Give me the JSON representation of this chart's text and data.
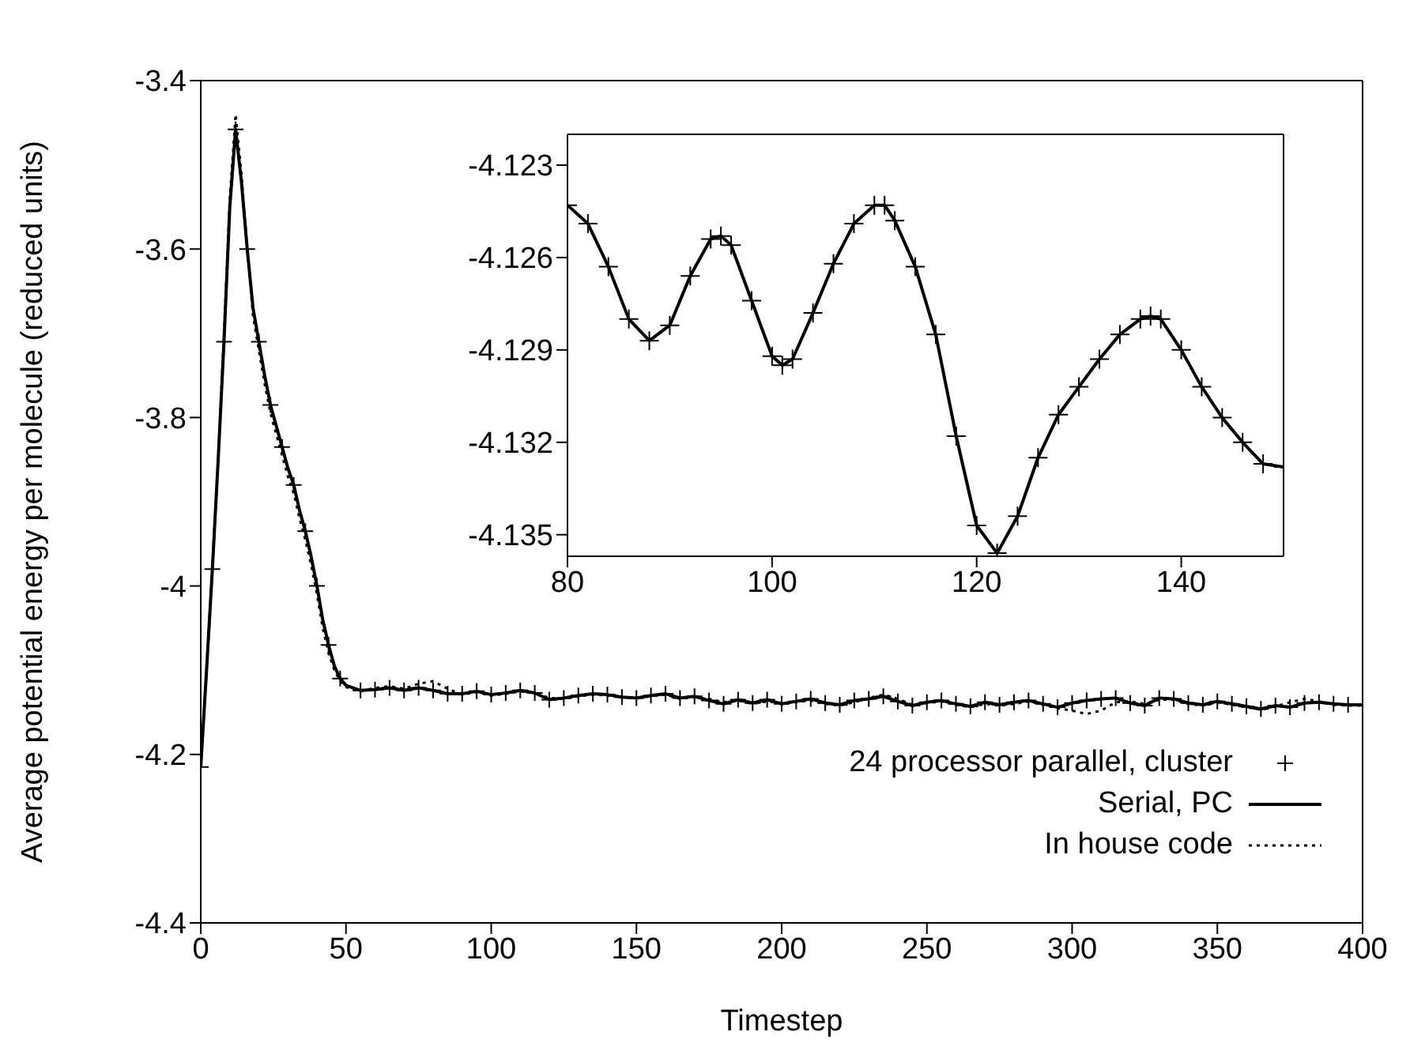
{
  "chart_data": [
    {
      "type": "line",
      "xlabel": "Timestep",
      "ylabel": "Average potential energy per molecule (reduced units)",
      "xlim": [
        0,
        400
      ],
      "xticks": [
        0,
        50,
        100,
        150,
        200,
        250,
        300,
        350,
        400
      ],
      "ylim": [
        -4.4,
        -3.4
      ],
      "yticks": [
        -4.4,
        -4.2,
        -4,
        -3.8,
        -3.6,
        -3.4
      ],
      "legend": "bottom right",
      "x": [
        0,
        2,
        4,
        6,
        8,
        10,
        12,
        14,
        16,
        18,
        20,
        22,
        24,
        26,
        28,
        30,
        32,
        34,
        36,
        38,
        40,
        42,
        44,
        46,
        48,
        50,
        55,
        60,
        65,
        70,
        75,
        80,
        85,
        90,
        95,
        100,
        105,
        110,
        115,
        120,
        125,
        130,
        135,
        140,
        145,
        150,
        155,
        160,
        165,
        170,
        175,
        180,
        185,
        190,
        195,
        200,
        205,
        210,
        215,
        220,
        225,
        230,
        235,
        240,
        245,
        250,
        255,
        260,
        265,
        270,
        275,
        280,
        285,
        290,
        295,
        300,
        305,
        310,
        315,
        320,
        325,
        330,
        335,
        340,
        345,
        350,
        355,
        360,
        365,
        370,
        375,
        380,
        385,
        390,
        395,
        400
      ],
      "series": [
        {
          "name": "24 processor parallel, cluster",
          "type": "scatter",
          "marker": "cross",
          "color": "#000000",
          "x": [
            0,
            4,
            8,
            12,
            16,
            20,
            24,
            28,
            32,
            36,
            40,
            44,
            48,
            55,
            60,
            65,
            70,
            75,
            80,
            85,
            90,
            95,
            100,
            105,
            110,
            115,
            120,
            125,
            130,
            135,
            140,
            145,
            150,
            155,
            160,
            165,
            170,
            175,
            180,
            185,
            190,
            195,
            200,
            205,
            210,
            215,
            220,
            225,
            230,
            235,
            240,
            245,
            250,
            255,
            260,
            265,
            270,
            275,
            280,
            285,
            290,
            295,
            300,
            305,
            310,
            315,
            320,
            325,
            330,
            335,
            340,
            345,
            350,
            355,
            360,
            365,
            370,
            375,
            380,
            385,
            390,
            395
          ],
          "values": [
            -4.215,
            -3.98,
            -3.71,
            -3.458,
            -3.6,
            -3.71,
            -3.785,
            -3.835,
            -3.88,
            -3.935,
            -4.0,
            -4.07,
            -4.11,
            -4.124,
            -4.123,
            -4.121,
            -4.124,
            -4.121,
            -4.124,
            -4.128,
            -4.128,
            -4.125,
            -4.129,
            -4.127,
            -4.124,
            -4.127,
            -4.135,
            -4.133,
            -4.13,
            -4.128,
            -4.129,
            -4.132,
            -4.133,
            -4.13,
            -4.128,
            -4.133,
            -4.131,
            -4.136,
            -4.14,
            -4.135,
            -4.139,
            -4.135,
            -4.14,
            -4.137,
            -4.134,
            -4.139,
            -4.141,
            -4.136,
            -4.134,
            -4.131,
            -4.137,
            -4.142,
            -4.138,
            -4.136,
            -4.14,
            -4.143,
            -4.138,
            -4.141,
            -4.138,
            -4.136,
            -4.14,
            -4.144,
            -4.139,
            -4.136,
            -4.134,
            -4.133,
            -4.139,
            -4.142,
            -4.133,
            -4.134,
            -4.139,
            -4.141,
            -4.137,
            -4.14,
            -4.143,
            -4.146,
            -4.142,
            -4.144,
            -4.139,
            -4.138,
            -4.14,
            -4.141
          ]
        },
        {
          "name": "Serial, PC",
          "type": "line",
          "line_style": "solid",
          "color": "#000000",
          "values": [
            -4.215,
            -4.1,
            -3.98,
            -3.85,
            -3.71,
            -3.55,
            -3.458,
            -3.52,
            -3.6,
            -3.67,
            -3.71,
            -3.75,
            -3.785,
            -3.81,
            -3.835,
            -3.86,
            -3.88,
            -3.91,
            -3.935,
            -3.965,
            -4.0,
            -4.04,
            -4.07,
            -4.095,
            -4.11,
            -4.118,
            -4.124,
            -4.123,
            -4.121,
            -4.124,
            -4.121,
            -4.124,
            -4.128,
            -4.128,
            -4.125,
            -4.129,
            -4.127,
            -4.124,
            -4.127,
            -4.135,
            -4.133,
            -4.13,
            -4.128,
            -4.129,
            -4.132,
            -4.133,
            -4.13,
            -4.128,
            -4.133,
            -4.131,
            -4.136,
            -4.14,
            -4.135,
            -4.139,
            -4.135,
            -4.14,
            -4.137,
            -4.134,
            -4.139,
            -4.141,
            -4.136,
            -4.134,
            -4.131,
            -4.137,
            -4.142,
            -4.138,
            -4.136,
            -4.14,
            -4.143,
            -4.138,
            -4.141,
            -4.138,
            -4.136,
            -4.14,
            -4.144,
            -4.139,
            -4.136,
            -4.134,
            -4.133,
            -4.139,
            -4.142,
            -4.133,
            -4.134,
            -4.139,
            -4.141,
            -4.137,
            -4.14,
            -4.143,
            -4.146,
            -4.142,
            -4.144,
            -4.139,
            -4.138,
            -4.14,
            -4.141,
            -4.141
          ]
        },
        {
          "name": "In house code",
          "type": "line",
          "line_style": "dotted",
          "color": "#000000",
          "values": [
            -4.215,
            -4.1,
            -3.98,
            -3.85,
            -3.7,
            -3.54,
            -3.44,
            -3.51,
            -3.6,
            -3.68,
            -3.72,
            -3.76,
            -3.795,
            -3.82,
            -3.845,
            -3.87,
            -3.89,
            -3.92,
            -3.945,
            -3.975,
            -4.01,
            -4.05,
            -4.08,
            -4.1,
            -4.113,
            -4.12,
            -4.125,
            -4.121,
            -4.119,
            -4.122,
            -4.116,
            -4.113,
            -4.122,
            -4.129,
            -4.126,
            -4.13,
            -4.128,
            -4.125,
            -4.127,
            -4.133,
            -4.134,
            -4.131,
            -4.129,
            -4.13,
            -4.132,
            -4.133,
            -4.131,
            -4.129,
            -4.134,
            -4.132,
            -4.134,
            -4.138,
            -4.136,
            -4.14,
            -4.137,
            -4.139,
            -4.138,
            -4.136,
            -4.14,
            -4.142,
            -4.138,
            -4.133,
            -4.129,
            -4.134,
            -4.141,
            -4.139,
            -4.137,
            -4.141,
            -4.144,
            -4.14,
            -4.142,
            -4.14,
            -4.137,
            -4.141,
            -4.145,
            -4.148,
            -4.152,
            -4.148,
            -4.138,
            -4.137,
            -4.14,
            -4.135,
            -4.135,
            -4.14,
            -4.142,
            -4.138,
            -4.141,
            -4.144,
            -4.147,
            -4.143,
            -4.138,
            -4.134,
            -4.137,
            -4.141,
            -4.142,
            -4.142
          ]
        }
      ]
    },
    {
      "type": "line",
      "xlim": [
        80,
        150
      ],
      "xticks": [
        80,
        100,
        120,
        140
      ],
      "ylim": [
        -4.1357,
        -4.122
      ],
      "yticks": [
        -4.135,
        -4.132,
        -4.129,
        -4.126,
        -4.123
      ],
      "x": [
        80,
        82,
        84,
        86,
        88,
        90,
        92,
        94,
        95,
        96,
        98,
        100,
        101,
        102,
        104,
        106,
        108,
        110,
        111,
        112,
        114,
        116,
        118,
        120,
        122,
        124,
        126,
        128,
        130,
        132,
        134,
        136,
        137,
        138,
        140,
        142,
        144,
        146,
        148,
        150
      ],
      "series": [
        {
          "type": "scatter",
          "marker": "cross",
          "color": "#000000",
          "values": [
            -4.1243,
            -4.1249,
            -4.1263,
            -4.128,
            -4.1287,
            -4.1282,
            -4.1266,
            -4.1254,
            -4.1253,
            -4.1256,
            -4.1274,
            -4.1292,
            -4.1295,
            -4.1293,
            -4.1278,
            -4.1262,
            -4.1249,
            -4.1243,
            -4.1243,
            -4.1248,
            -4.1263,
            -4.1285,
            -4.1318,
            -4.1347,
            -4.1356,
            -4.1344,
            -4.1325,
            -4.1311,
            -4.1302,
            -4.1293,
            -4.1285,
            -4.128,
            -4.1279,
            -4.128,
            -4.129,
            -4.1302,
            -4.1312,
            -4.132,
            -4.1327,
            -4.1328
          ]
        },
        {
          "type": "line",
          "line_style": "solid",
          "color": "#000000",
          "values": [
            -4.1243,
            -4.1249,
            -4.1263,
            -4.128,
            -4.1287,
            -4.1282,
            -4.1266,
            -4.1254,
            -4.1253,
            -4.1256,
            -4.1274,
            -4.1292,
            -4.1295,
            -4.1293,
            -4.1278,
            -4.1262,
            -4.1249,
            -4.1243,
            -4.1243,
            -4.1248,
            -4.1263,
            -4.1285,
            -4.1318,
            -4.1347,
            -4.1356,
            -4.1344,
            -4.1325,
            -4.1311,
            -4.1302,
            -4.1293,
            -4.1285,
            -4.128,
            -4.1279,
            -4.128,
            -4.129,
            -4.1302,
            -4.1312,
            -4.132,
            -4.1327,
            -4.1328
          ]
        }
      ]
    }
  ]
}
